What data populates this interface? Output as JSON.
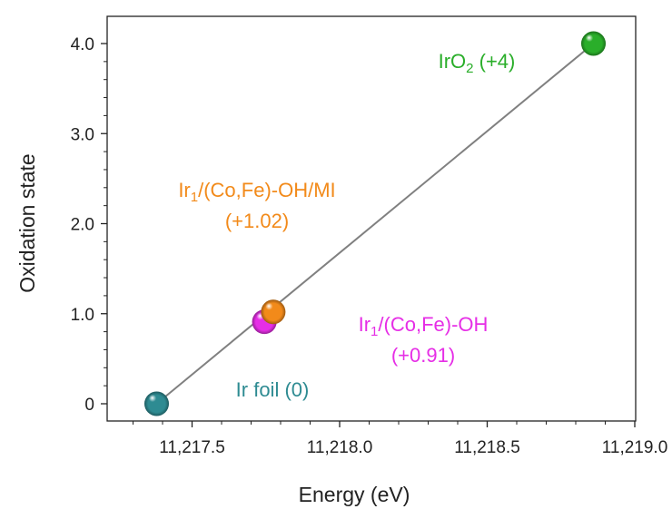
{
  "chart_data": {
    "type": "scatter",
    "xlabel": "Energy (eV)",
    "ylabel": "Oxidation state",
    "xlim": [
      11217.25,
      11219.0
    ],
    "ylim": [
      -0.2,
      4.15
    ],
    "x_ticks": [
      11217.5,
      11218.0,
      11218.5,
      11219.0
    ],
    "x_tick_labels": [
      "11,217.5",
      "11,218.0",
      "11,218.5",
      "11,219.0"
    ],
    "y_ticks": [
      0,
      1.0,
      2.0,
      3.0,
      4.0
    ],
    "y_tick_labels": [
      "0",
      "1.0",
      "2.0",
      "3.0",
      "4.0"
    ],
    "grid": false,
    "fit_line": {
      "x": [
        11217.38,
        11218.86
      ],
      "y": [
        0,
        4.0
      ],
      "color": "#808080"
    },
    "points": [
      {
        "x": 11217.38,
        "y": 0,
        "color": "#2E8B92",
        "label_base": "Ir foil (0)",
        "label_sub": "",
        "label_rest": "",
        "label_line2": ""
      },
      {
        "x": 11217.745,
        "y": 0.91,
        "color": "#E62EE6",
        "label_base": "Ir",
        "label_sub": "1",
        "label_rest": "/(Co,Fe)-OH",
        "label_line2": "(+0.91)"
      },
      {
        "x": 11217.775,
        "y": 1.02,
        "color": "#F28A1A",
        "label_base": "Ir",
        "label_sub": "1",
        "label_rest": "/(Co,Fe)-OH/MI",
        "label_line2": "(+1.02)"
      },
      {
        "x": 11218.86,
        "y": 4.0,
        "color": "#2AAE2A",
        "label_base": "IrO",
        "label_sub": "2",
        "label_rest": " (+4)",
        "label_line2": ""
      }
    ]
  }
}
